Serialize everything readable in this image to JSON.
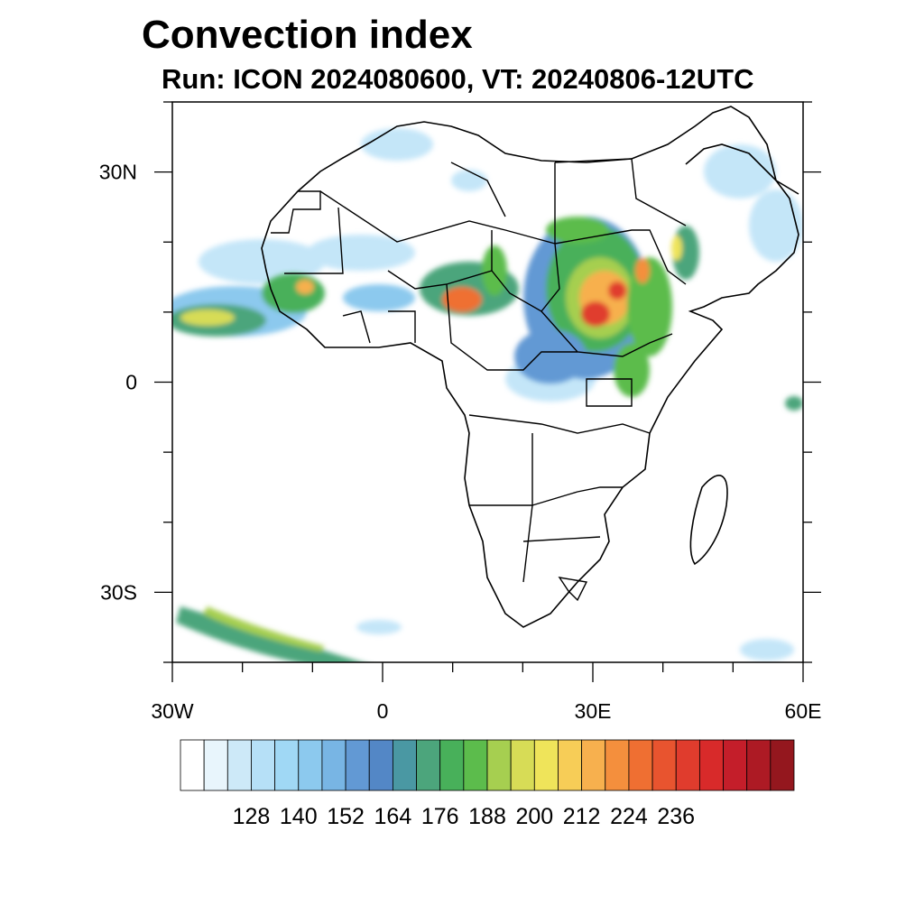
{
  "map": {
    "title": "Convection index",
    "subtitle": "Run: ICON 2024080600,  VT: 20240806-12UTC",
    "extent": {
      "lon": [
        -30,
        60
      ],
      "lat": [
        -40,
        40
      ]
    },
    "lon_ticks": [
      {
        "value": -30,
        "label": "30W"
      },
      {
        "value": 0,
        "label": "0"
      },
      {
        "value": 30,
        "label": "30E"
      },
      {
        "value": 60,
        "label": "60E"
      }
    ],
    "lat_ticks": [
      {
        "value": 30,
        "label": "30N"
      },
      {
        "value": 0,
        "label": "0"
      },
      {
        "value": -30,
        "label": "30S"
      }
    ]
  },
  "colorbar": {
    "colors": [
      "#ffffff",
      "#e8f5fc",
      "#cde9f8",
      "#b6e0f7",
      "#a0d8f5",
      "#8cc9ee",
      "#78b5e4",
      "#6299d4",
      "#5387c6",
      "#4a98a3",
      "#4ca57c",
      "#48b05a",
      "#5cbc4c",
      "#a6cf50",
      "#d7dc56",
      "#efe45a",
      "#f7cd57",
      "#f7b04e",
      "#f48f3d",
      "#ef6f32",
      "#e8542f",
      "#e03c2d",
      "#d82a2a",
      "#c41e2a",
      "#ad1a24",
      "#94171e"
    ],
    "labels": [
      "128",
      "140",
      "152",
      "164",
      "176",
      "188",
      "200",
      "212",
      "224",
      "236"
    ]
  }
}
